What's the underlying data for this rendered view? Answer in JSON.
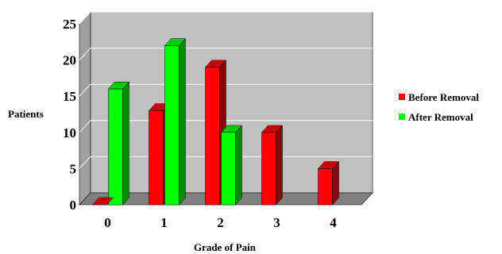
{
  "chart_data": {
    "type": "bar",
    "style": "3d-clustered-column",
    "categories": [
      "0",
      "1",
      "2",
      "3",
      "4"
    ],
    "series": [
      {
        "name": "Before Removal",
        "color": "#ff0000",
        "values": [
          0,
          13,
          19,
          10,
          5
        ]
      },
      {
        "name": "After Removal",
        "color": "#00ff00",
        "values": [
          16,
          22,
          10,
          0,
          0
        ]
      }
    ],
    "xlabel": "Grade of Pain",
    "ylabel": "Patients",
    "ylim": [
      0,
      25
    ],
    "yticks": [
      "0",
      "5",
      "10",
      "15",
      "20",
      "25"
    ],
    "grid": true,
    "legend_position": "right",
    "colors": {
      "wall": "#c0c0c0",
      "floor": "#808080",
      "gridline": "#ffffff"
    }
  }
}
